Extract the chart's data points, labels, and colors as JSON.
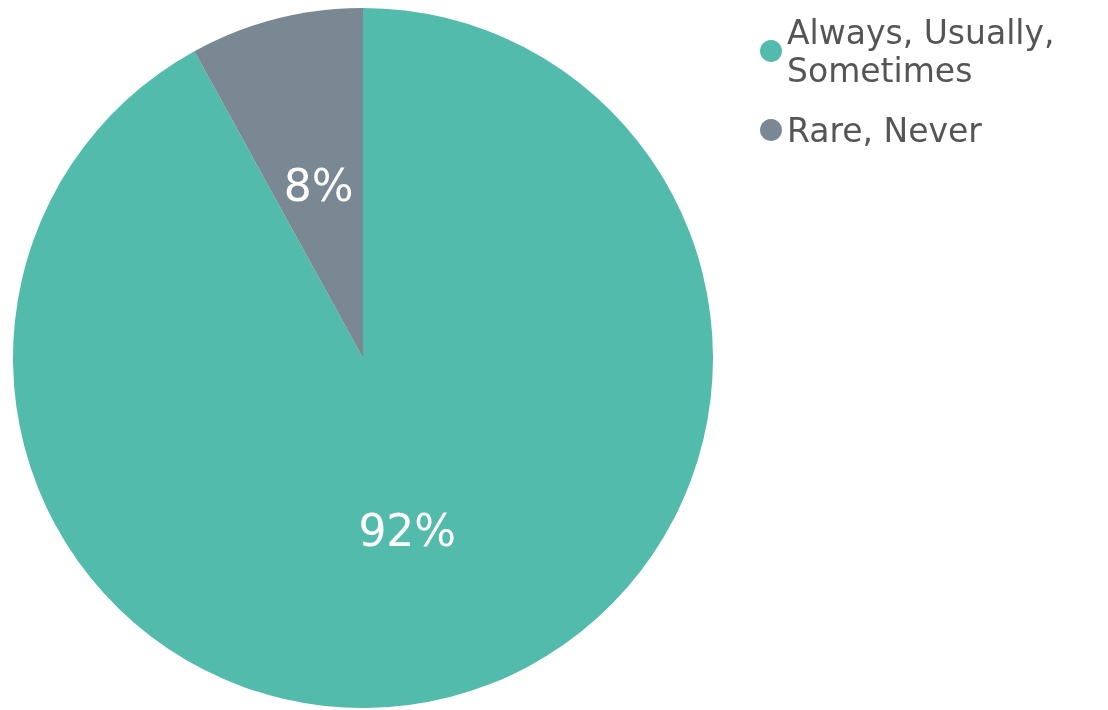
{
  "chart_data": {
    "type": "pie",
    "categories": [
      "Always, Usually, Sometimes",
      "Rare, Never"
    ],
    "values": [
      92,
      8
    ],
    "colors": [
      "#52bbab",
      "#7a8893"
    ],
    "value_labels": [
      "92%",
      "8%"
    ],
    "legend": "top right"
  }
}
